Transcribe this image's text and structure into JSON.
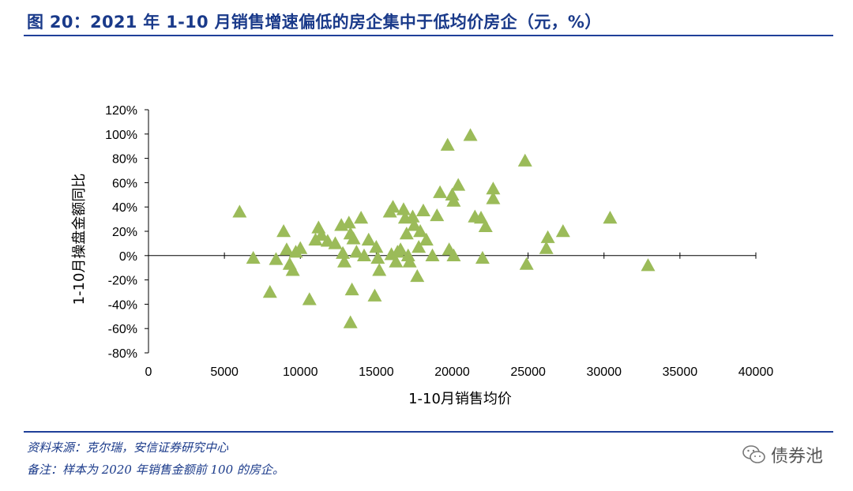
{
  "header": {
    "title": "图 20：2021 年 1-10 月销售增速偏低的房企集中于低均价房企（元，%）"
  },
  "footer": {
    "source": "资料来源：克尔瑞，安信证券研究中心",
    "note": "备注：样本为 2020 年销售金额前 100 的房企。",
    "watermark": "债券池"
  },
  "colors": {
    "marker": "#9bbb59",
    "title": "#1a3a8a",
    "rule": "#1f3f99"
  },
  "icons": {
    "watermark": "wechat-icon"
  },
  "chart_data": {
    "type": "scatter",
    "xlabel": "1-10月销售均价",
    "ylabel": "1-10月操盘金额同比",
    "xlim": [
      0,
      40000
    ],
    "ylim": [
      -80,
      120
    ],
    "x_ticks": [
      "0",
      "5000",
      "10000",
      "15000",
      "20000",
      "25000",
      "30000",
      "35000",
      "40000"
    ],
    "y_ticks": [
      "120%",
      "100%",
      "80%",
      "60%",
      "40%",
      "20%",
      "0%",
      "-20%",
      "-40%",
      "-60%",
      "-80%"
    ],
    "marker": "triangle",
    "points": [
      {
        "x": 6000,
        "y": 36
      },
      {
        "x": 6900,
        "y": -2
      },
      {
        "x": 8000,
        "y": -30
      },
      {
        "x": 8400,
        "y": -3
      },
      {
        "x": 8900,
        "y": 20
      },
      {
        "x": 9100,
        "y": 5
      },
      {
        "x": 9300,
        "y": -7
      },
      {
        "x": 9500,
        "y": -12
      },
      {
        "x": 9700,
        "y": 3
      },
      {
        "x": 10000,
        "y": 6
      },
      {
        "x": 10600,
        "y": -36
      },
      {
        "x": 11000,
        "y": 13
      },
      {
        "x": 11200,
        "y": 23
      },
      {
        "x": 11400,
        "y": 17
      },
      {
        "x": 11800,
        "y": 12
      },
      {
        "x": 12300,
        "y": 10
      },
      {
        "x": 12700,
        "y": 25
      },
      {
        "x": 12800,
        "y": 2
      },
      {
        "x": 12900,
        "y": -5
      },
      {
        "x": 13200,
        "y": 27
      },
      {
        "x": 13300,
        "y": 18
      },
      {
        "x": 13300,
        "y": -55
      },
      {
        "x": 13400,
        "y": -28
      },
      {
        "x": 13500,
        "y": 14
      },
      {
        "x": 13700,
        "y": 3
      },
      {
        "x": 14000,
        "y": 31
      },
      {
        "x": 14200,
        "y": 0
      },
      {
        "x": 14500,
        "y": 13
      },
      {
        "x": 14900,
        "y": -33
      },
      {
        "x": 15000,
        "y": 7
      },
      {
        "x": 15100,
        "y": -2
      },
      {
        "x": 15200,
        "y": -12
      },
      {
        "x": 15900,
        "y": 36
      },
      {
        "x": 16000,
        "y": 1
      },
      {
        "x": 16100,
        "y": 40
      },
      {
        "x": 16300,
        "y": -5
      },
      {
        "x": 16400,
        "y": 3
      },
      {
        "x": 16600,
        "y": 5
      },
      {
        "x": 16800,
        "y": 38
      },
      {
        "x": 16900,
        "y": 31
      },
      {
        "x": 17000,
        "y": 18
      },
      {
        "x": 17100,
        "y": 0
      },
      {
        "x": 17200,
        "y": -5
      },
      {
        "x": 17400,
        "y": 32
      },
      {
        "x": 17500,
        "y": 25
      },
      {
        "x": 17700,
        "y": -17
      },
      {
        "x": 17800,
        "y": 7
      },
      {
        "x": 17900,
        "y": 20
      },
      {
        "x": 18100,
        "y": 37
      },
      {
        "x": 18300,
        "y": 13
      },
      {
        "x": 18700,
        "y": 0
      },
      {
        "x": 19000,
        "y": 33
      },
      {
        "x": 19200,
        "y": 52
      },
      {
        "x": 19700,
        "y": 91
      },
      {
        "x": 19800,
        "y": 5
      },
      {
        "x": 20000,
        "y": 50
      },
      {
        "x": 20100,
        "y": 45
      },
      {
        "x": 20100,
        "y": 0
      },
      {
        "x": 20400,
        "y": 58
      },
      {
        "x": 21200,
        "y": 99
      },
      {
        "x": 21500,
        "y": 32
      },
      {
        "x": 21900,
        "y": 31
      },
      {
        "x": 22000,
        "y": -2
      },
      {
        "x": 22200,
        "y": 24
      },
      {
        "x": 22700,
        "y": 55
      },
      {
        "x": 22700,
        "y": 47
      },
      {
        "x": 24800,
        "y": 78
      },
      {
        "x": 24900,
        "y": -7
      },
      {
        "x": 26200,
        "y": 6
      },
      {
        "x": 26300,
        "y": 15
      },
      {
        "x": 27300,
        "y": 20
      },
      {
        "x": 30400,
        "y": 31
      },
      {
        "x": 32900,
        "y": -8
      }
    ]
  }
}
